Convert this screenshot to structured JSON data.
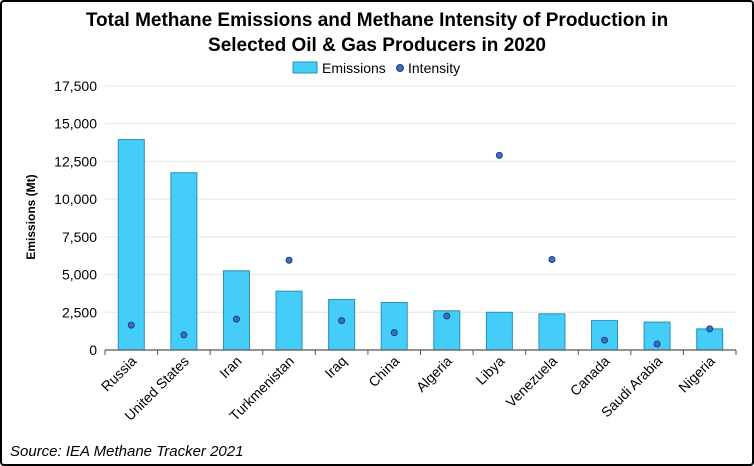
{
  "chart_data": {
    "type": "bar",
    "title": [
      "Total Methane Emissions and Methane Intensity of Production in",
      "Selected Oil & Gas Producers in 2020"
    ],
    "ylabel": "Emissions (Mt)",
    "xlabel": "",
    "ylim": [
      0,
      17500
    ],
    "yticks": [
      "0",
      "2,500",
      "5,000",
      "7,500",
      "10,000",
      "12,500",
      "15,000",
      "17,500"
    ],
    "grid": true,
    "legend_placement": "top-center",
    "categories": [
      "Russia",
      "United States",
      "Iran",
      "Turkmenistan",
      "Iraq",
      "China",
      "Algeria",
      "Libya",
      "Venezuela",
      "Canada",
      "Saudi Arabia",
      "Nigeria"
    ],
    "series": [
      {
        "name": "Emissions",
        "kind": "bar",
        "color": "#45cdfa",
        "values": [
          13950,
          11750,
          5250,
          3900,
          3350,
          3150,
          2600,
          2500,
          2400,
          1950,
          1850,
          1400
        ]
      },
      {
        "name": "Intensity",
        "kind": "scatter",
        "color": "#3a6fc4",
        "values": [
          1650,
          1000,
          2050,
          5950,
          1950,
          1150,
          2250,
          12900,
          6000,
          650,
          400,
          1400
        ]
      }
    ],
    "source": "Source: IEA Methane Tracker 2021"
  }
}
